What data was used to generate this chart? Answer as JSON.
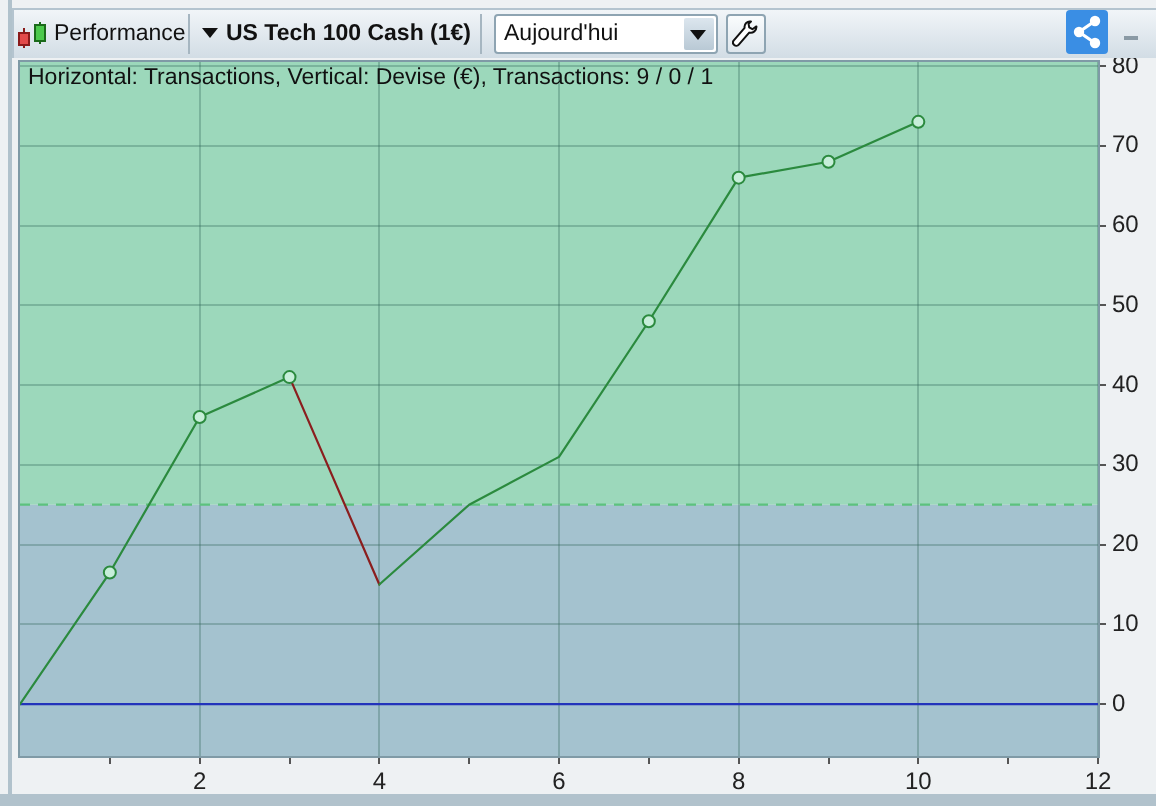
{
  "chart_data": {
    "type": "line",
    "title": "Horizontal: Transactions, Vertical: Devise (€), Transactions: 9 / 0 / 1",
    "annotations": [
      "Performance",
      "US Tech 100 Cash (1€)",
      "Aujourd'hui"
    ],
    "series": [
      {
        "x": [
          0,
          1,
          2,
          3
        ],
        "color": "#2b8a3e",
        "values": [
          0,
          16.5,
          36,
          41
        ]
      },
      {
        "x": [
          3,
          4
        ],
        "color": "#8b1e1e",
        "values": [
          41,
          15
        ]
      },
      {
        "x": [
          4,
          5,
          6,
          7,
          8,
          9,
          10
        ],
        "color": "#2b8a3e",
        "values": [
          15,
          25,
          31,
          48,
          66,
          68,
          73
        ]
      },
      {
        "type": "scatter",
        "x": [
          1,
          2,
          3,
          7,
          8,
          9,
          10
        ],
        "color": "#2b8a3e",
        "marker": "circle",
        "values": [
          16.5,
          36,
          41,
          48,
          66,
          68,
          73
        ]
      }
    ],
    "xlim": [
      0,
      12
    ],
    "xticks": [
      {
        "value": 1,
        "label": null
      },
      2,
      {
        "value": 3,
        "label": null
      },
      4,
      {
        "value": 5,
        "label": null
      },
      6,
      {
        "value": 7,
        "label": null
      },
      8,
      {
        "value": 9,
        "label": null
      },
      10,
      {
        "value": 11,
        "label": null
      },
      12
    ],
    "ylim": [
      -6.5,
      80.5
    ],
    "yticks": [
      0,
      10,
      20,
      30,
      40,
      50,
      60,
      70,
      80
    ],
    "grid": true,
    "bands": [
      {
        "axis": "y",
        "from": 25,
        "to": 80.5,
        "color": "#9cd8bb"
      },
      {
        "axis": "y",
        "from": -6.5,
        "to": 25,
        "color": "#a4c2cf"
      }
    ],
    "ref_lines": [
      {
        "axis": "y",
        "value": 25,
        "color": "#5cc27e",
        "line_style": "dashed"
      },
      {
        "axis": "y",
        "value": 0,
        "color": "#2233bb",
        "line_style": "solid"
      }
    ]
  }
}
